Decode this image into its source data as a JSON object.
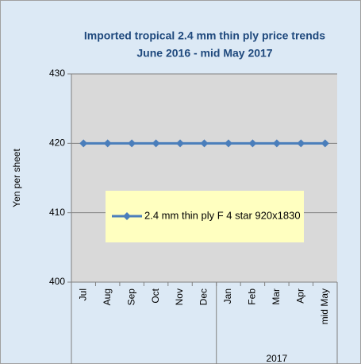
{
  "chart_data": {
    "type": "line",
    "title": [
      "Imported tropical 2.4 mm thin ply price trends",
      "June 2016 - mid May 2017"
    ],
    "y_label": "Yen per sheet",
    "categories": [
      "Jul",
      "Aug",
      "Sep",
      "Oct",
      "Nov",
      "Dec",
      "Jan",
      "Feb",
      "Mar",
      "Apr",
      "mid May"
    ],
    "category_groups": [
      {
        "label": "2017",
        "from": 6,
        "to": 10
      }
    ],
    "series": [
      {
        "name": "2.4 mm thin ply F 4 star 920x1830",
        "color": "#4a7ebb",
        "values": [
          420,
          420,
          420,
          420,
          420,
          420,
          420,
          420,
          420,
          420,
          420
        ]
      }
    ],
    "ylim": [
      400,
      430
    ],
    "yticks": [
      400,
      410,
      420,
      430
    ],
    "grid": true,
    "legend": "center"
  }
}
